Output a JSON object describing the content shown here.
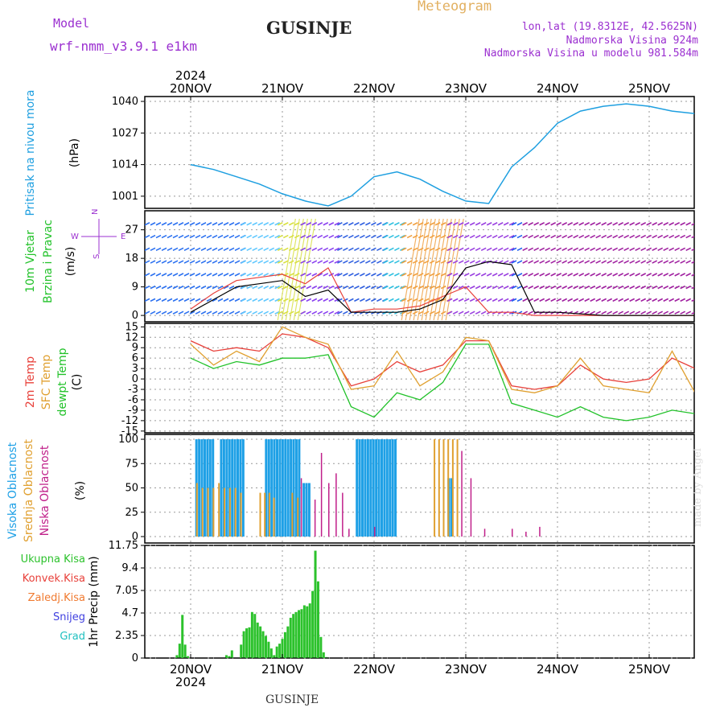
{
  "header": {
    "model_label": "Model",
    "model_name": "wrf-nmm_v3.9.1 e1km",
    "city": "GUSINJE",
    "product": "Meteogram",
    "lonlat": "lon,lat (19.8312E, 42.5625N)",
    "elevation": "Nadmorska Visina 924m",
    "model_elevation": "Nadmorska Visina u modelu 981.584m"
  },
  "footer": {
    "city": "GUSINJE",
    "credit": "made by Angel"
  },
  "time_axis": {
    "labels": [
      "20NOV",
      "21NOV",
      "22NOV",
      "23NOV",
      "24NOV",
      "25NOV"
    ],
    "year": "2024",
    "range_days": [
      0,
      6
    ]
  },
  "colors": {
    "pressure": "#1e9fe0",
    "temp2m": "#e8403a",
    "sfc": "#e0a030",
    "dewpt": "#22c22a",
    "high_cloud": "#1ea0e6",
    "mid_cloud": "#e0a030",
    "low_cloud": "#c0208a",
    "precip": "#2cc22c",
    "wind_max": "#e8403a",
    "wind_mean": "#000000"
  },
  "chart_data": [
    {
      "type": "line",
      "panel": "pressure",
      "ylabel_name": "Pritisak na nivou mora",
      "unit": "(hPa)",
      "ylim": [
        996,
        1042
      ],
      "yticks": [
        "1040",
        "1027",
        "1014",
        "1001"
      ],
      "x": [
        0,
        0.25,
        0.5,
        0.75,
        1.0,
        1.25,
        1.5,
        1.75,
        2.0,
        2.25,
        2.5,
        2.75,
        3.0,
        3.25,
        3.5,
        3.75,
        4.0,
        4.25,
        4.5,
        4.75,
        5.0,
        5.25,
        5.5,
        5.75,
        6.0,
        6.25
      ],
      "values": [
        1014,
        1012,
        1009,
        1006,
        1002,
        999,
        997,
        1001,
        1009,
        1011,
        1008,
        1003,
        999,
        998,
        1013,
        1021,
        1031,
        1036,
        1038,
        1039,
        1038,
        1036,
        1035,
        1035,
        1034,
        1030
      ],
      "grid": true
    },
    {
      "type": "line",
      "panel": "wind",
      "ylabel_name": [
        "10m Vjetar",
        "Brzina i Pravac"
      ],
      "unit": "(m/s)",
      "compass": {
        "n": "N",
        "e": "E",
        "w": "W",
        "s": "S"
      },
      "ylim": [
        -2,
        33
      ],
      "yticks": [
        "27",
        "18",
        "9",
        "0"
      ],
      "x": [
        0,
        0.25,
        0.5,
        0.75,
        1.0,
        1.25,
        1.5,
        1.75,
        2.0,
        2.25,
        2.5,
        2.75,
        3.0,
        3.25,
        3.5,
        3.75,
        4.0,
        4.5,
        5.0,
        5.5,
        6.0
      ],
      "series": [
        {
          "values": [
            2,
            7,
            11,
            12,
            13,
            10,
            15,
            1,
            2,
            2,
            3,
            6,
            9,
            1,
            1,
            0,
            0,
            0,
            0,
            0,
            0
          ]
        },
        {
          "values": [
            1,
            5,
            9,
            10,
            11,
            6,
            8,
            1,
            1,
            1,
            2,
            5,
            15,
            17,
            16,
            1,
            1,
            0,
            0,
            0,
            0
          ]
        }
      ],
      "grid": true
    },
    {
      "type": "line",
      "panel": "temperature",
      "ylabel_name": [
        "2m Temp",
        "SFC Temp",
        "dewpt Temp"
      ],
      "unit": "(C)",
      "ylim": [
        -15.5,
        16
      ],
      "yticks": [
        "15",
        "12",
        "9",
        "6",
        "3",
        "0",
        "-3",
        "-6",
        "-9",
        "-12",
        "-15"
      ],
      "x": [
        0,
        0.25,
        0.5,
        0.75,
        1.0,
        1.25,
        1.5,
        1.75,
        2.0,
        2.25,
        2.5,
        2.75,
        3.0,
        3.25,
        3.5,
        3.75,
        4.0,
        4.25,
        4.5,
        4.75,
        5.0,
        5.25,
        5.5,
        5.75,
        6.0,
        6.25
      ],
      "series": [
        {
          "name": "2m Temp",
          "values": [
            11,
            8,
            9,
            8,
            13,
            12,
            9,
            -2,
            0,
            5,
            2,
            4,
            11,
            11,
            -2,
            -3,
            -2,
            4,
            0,
            -1,
            0,
            6,
            3,
            2,
            1,
            6
          ]
        },
        {
          "name": "SFC Temp",
          "values": [
            10,
            4,
            8,
            5,
            15,
            12,
            10,
            -3,
            -2,
            8,
            -2,
            2,
            12,
            11,
            -3,
            -4,
            -2,
            6,
            -2,
            -3,
            -4,
            8,
            -4,
            -4,
            -4,
            8
          ]
        },
        {
          "name": "dewpt Temp",
          "values": [
            6,
            3,
            5,
            4,
            6,
            6,
            7,
            -8,
            -11,
            -4,
            -6,
            -1,
            10,
            10,
            -7,
            -9,
            -11,
            -8,
            -11,
            -12,
            -11,
            -9,
            -10,
            -11,
            -12,
            -3
          ]
        }
      ],
      "grid": true
    },
    {
      "type": "bar",
      "panel": "clouds",
      "ylabel_name": [
        "Visoka Oblacnost",
        "Srednja Oblacnost",
        "Niska Oblacnost"
      ],
      "unit": "(%)",
      "ylim": [
        0,
        105
      ],
      "yticks": [
        "100",
        "75",
        "50",
        "25",
        "0"
      ],
      "series": [
        {
          "name": "Visoka Oblacnost",
          "x": [
            0.05,
            0.08,
            0.11,
            0.14,
            0.17,
            0.2,
            0.23,
            0.32,
            0.35,
            0.38,
            0.41,
            0.44,
            0.47,
            0.5,
            0.53,
            0.56,
            0.81,
            0.84,
            0.87,
            0.9,
            0.93,
            0.96,
            0.99,
            1.02,
            1.05,
            1.08,
            1.11,
            1.14,
            1.17,
            1.22,
            1.25,
            1.28,
            1.8,
            1.83,
            1.86,
            1.89,
            1.92,
            1.95,
            1.98,
            2.01,
            2.04,
            2.07,
            2.1,
            2.13,
            2.16,
            2.19,
            2.22,
            2.8,
            2.83
          ],
          "values": [
            100,
            100,
            100,
            100,
            100,
            100,
            100,
            100,
            100,
            100,
            100,
            100,
            100,
            100,
            100,
            100,
            100,
            100,
            100,
            100,
            100,
            100,
            100,
            100,
            100,
            100,
            100,
            100,
            100,
            55,
            55,
            55,
            100,
            100,
            100,
            100,
            100,
            100,
            100,
            100,
            100,
            100,
            100,
            100,
            100,
            100,
            100,
            60,
            60
          ]
        },
        {
          "name": "Srednja Oblacnost",
          "x": [
            0.06,
            0.12,
            0.18,
            0.24,
            0.3,
            0.36,
            0.42,
            0.48,
            0.54,
            0.75,
            0.8,
            0.85,
            0.9,
            1.1,
            1.16,
            2.65,
            2.7,
            2.75,
            2.8,
            2.85,
            2.9
          ],
          "values": [
            55,
            50,
            50,
            50,
            55,
            50,
            50,
            50,
            45,
            45,
            45,
            45,
            40,
            45,
            40,
            100,
            100,
            100,
            100,
            100,
            100
          ]
        },
        {
          "name": "Niska Oblacnost",
          "x": [
            1.2,
            1.35,
            1.42,
            1.5,
            1.58,
            1.65,
            1.72,
            2.0,
            2.95,
            3.05,
            3.2,
            3.5,
            3.65,
            3.8
          ],
          "values": [
            60,
            38,
            86,
            55,
            65,
            45,
            8,
            10,
            88,
            60,
            8,
            8,
            5,
            10
          ]
        }
      ],
      "grid": true
    },
    {
      "type": "bar",
      "panel": "precipitation",
      "ylabel_name": "1hr Precip",
      "unit": "(mm)",
      "legend": [
        "Ukupna Kisa",
        "Konvek.Kisa",
        "Zaledj.Kisa",
        "Snijeg",
        "Grad"
      ],
      "legend_colors": [
        "#2cc22c",
        "#e8403a",
        "#f07a30",
        "#4040e0",
        "#20c0c0"
      ],
      "ylim": [
        0,
        11.75
      ],
      "yticks": [
        "11.75",
        "9.4",
        "7.05",
        "4.7",
        "2.35",
        "0"
      ],
      "x": [
        -0.15,
        -0.12,
        -0.09,
        -0.06,
        -0.03,
        0.39,
        0.42,
        0.45,
        0.55,
        0.58,
        0.61,
        0.64,
        0.67,
        0.7,
        0.73,
        0.76,
        0.79,
        0.82,
        0.85,
        0.88,
        0.91,
        0.94,
        0.97,
        1.0,
        1.03,
        1.06,
        1.09,
        1.12,
        1.15,
        1.18,
        1.21,
        1.24,
        1.27,
        1.3,
        1.33,
        1.36,
        1.39,
        1.42,
        1.45,
        1.48
      ],
      "values": [
        0.3,
        1.5,
        4.5,
        1.4,
        0.2,
        0.3,
        0.2,
        0.8,
        1.4,
        2.8,
        3.1,
        3.2,
        4.8,
        4.6,
        3.7,
        3.3,
        2.8,
        2.3,
        1.7,
        1.0,
        0.3,
        1.2,
        1.5,
        2.0,
        2.7,
        3.3,
        4.2,
        4.6,
        4.8,
        5.0,
        5.1,
        5.5,
        5.4,
        5.7,
        7.0,
        11.2,
        8.0,
        2.2,
        0.6,
        0.1
      ],
      "grid": true
    }
  ]
}
